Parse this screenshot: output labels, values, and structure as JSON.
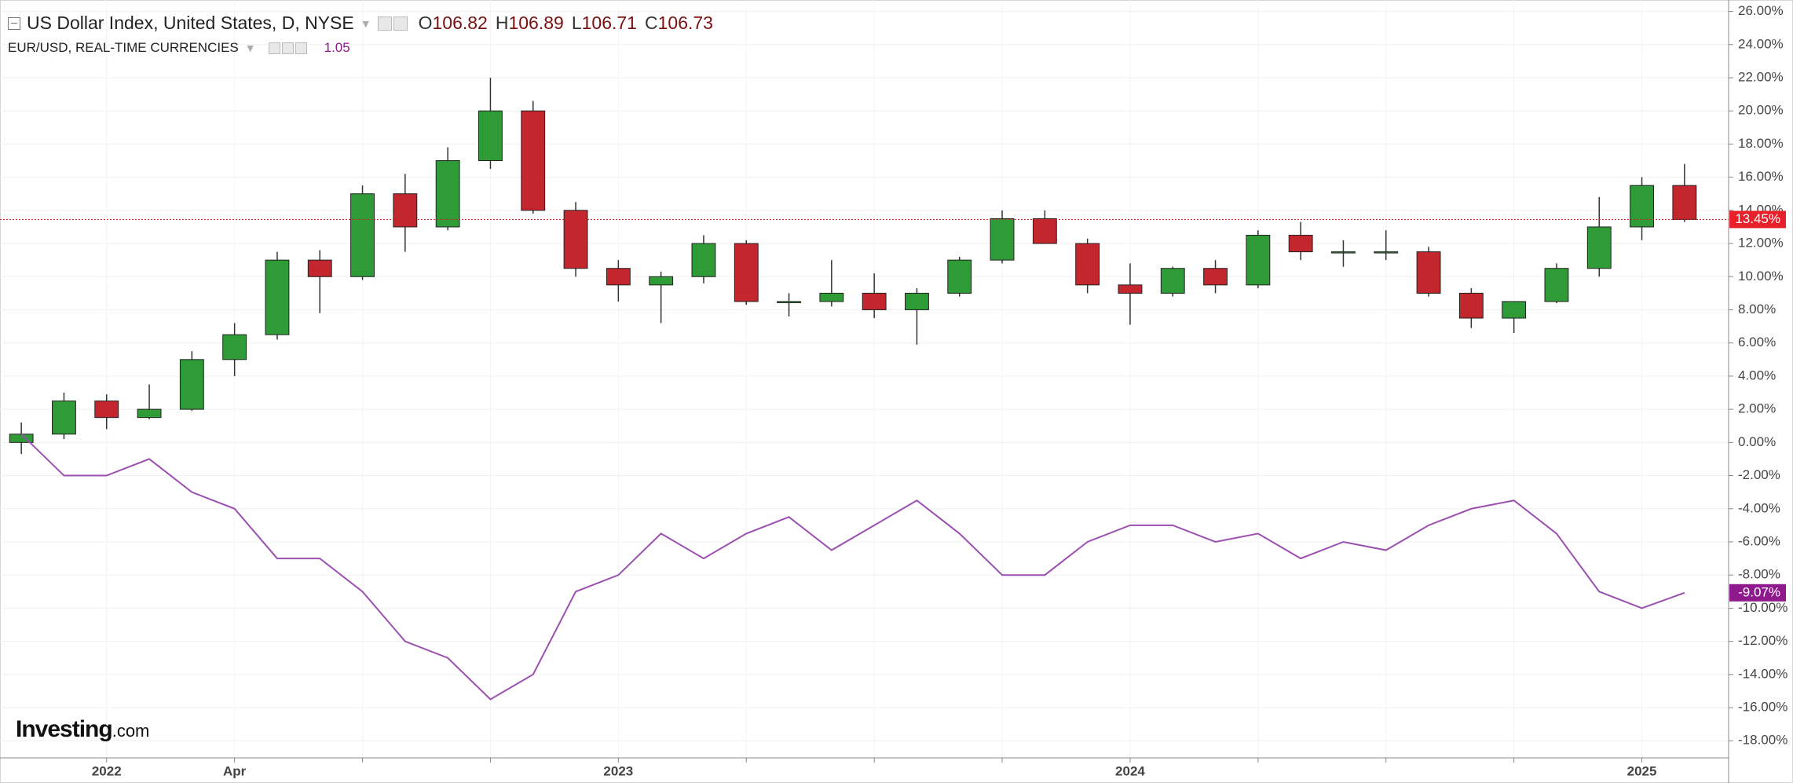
{
  "chart_data": {
    "type": "candlestick",
    "categories": [
      null,
      null,
      "2022",
      null,
      null,
      "Apr",
      null,
      null,
      null,
      null,
      null,
      null,
      null,
      null,
      "2023",
      null,
      null,
      null,
      null,
      null,
      null,
      null,
      null,
      null,
      null,
      null,
      "2024",
      null,
      null,
      null,
      null,
      null,
      null,
      null,
      null,
      null,
      null,
      null,
      "2025",
      null
    ],
    "series": [
      {
        "name": "US Dollar Index, United States, D, NYSE",
        "up_color": "#2f9b37",
        "down_color": "#c4262e",
        "open": [
          0,
          0.5,
          2.5,
          1.5,
          2,
          5,
          6.5,
          11,
          10,
          15,
          13,
          17,
          20,
          14,
          10.5,
          9.5,
          10,
          12,
          8.5,
          8.5,
          9,
          8,
          9,
          11,
          13.5,
          12,
          9.5,
          9,
          10.5,
          9.5,
          12.5,
          11.5,
          11.5,
          11.5,
          9,
          7.5,
          8.5,
          10.5,
          13,
          15.5
        ],
        "high": [
          1.2,
          3,
          2.9,
          3.5,
          5.5,
          7.2,
          11.5,
          11.6,
          15.5,
          16.2,
          17.8,
          22,
          20.6,
          14.5,
          11,
          10.3,
          12.5,
          12.2,
          9,
          11,
          10.2,
          9.3,
          11.2,
          14,
          14,
          12.3,
          10.8,
          10.6,
          11,
          12.8,
          13.3,
          12.2,
          12.8,
          11.8,
          9.3,
          8.5,
          10.8,
          14.8,
          16,
          16.8
        ],
        "low": [
          -0.7,
          0.2,
          0.8,
          1.4,
          1.9,
          4,
          6.2,
          7.8,
          9.8,
          11.5,
          12.8,
          16.5,
          13.8,
          10,
          8.5,
          7.2,
          9.6,
          8.3,
          7.6,
          8.2,
          7.5,
          5.9,
          8.8,
          10.8,
          12.2,
          9,
          7.1,
          8.8,
          9,
          9.3,
          11,
          10.6,
          11,
          8.8,
          6.9,
          6.6,
          8.4,
          10,
          12.2,
          13.3
        ],
        "close": [
          0.5,
          2.5,
          1.5,
          2,
          5,
          6.5,
          11,
          10,
          15,
          13,
          17,
          20,
          14,
          10.5,
          9.5,
          10,
          12,
          8.5,
          8.5,
          9,
          8,
          9,
          11,
          13.5,
          12,
          9.5,
          9,
          10.5,
          9.5,
          12.5,
          11.5,
          11.5,
          11.5,
          9,
          7.5,
          8.5,
          10.5,
          13,
          15.5,
          13.45
        ],
        "last_label": "13.45%",
        "ohlc": [
          {
            "letter": "O",
            "value": 106.82
          },
          {
            "letter": "H",
            "value": 106.89
          },
          {
            "letter": "L",
            "value": 106.71
          },
          {
            "letter": "C",
            "value": 106.73
          }
        ]
      },
      {
        "name": "EUR/USD, REAL-TIME CURRENCIES",
        "color": "#9b4fb0",
        "values": [
          0.5,
          -2,
          -2,
          -1,
          -3,
          -4,
          -7,
          -7,
          -9,
          -12,
          -13,
          -15.5,
          -14,
          -9,
          -8,
          -5.5,
          -7,
          -5.5,
          -4.5,
          -6.5,
          -5,
          -3.5,
          -5.5,
          -8,
          -8,
          -6,
          -5,
          -5,
          -6,
          -5.5,
          -7,
          -6,
          -6.5,
          -5,
          -4,
          -3.5,
          -5.5,
          -9,
          -10,
          -9.07
        ],
        "last_label": "-9.07%",
        "price": 1.05
      }
    ],
    "ylim": [
      -19.03,
      26.69
    ],
    "yticks": [
      {
        "value": 26,
        "label": "26.00%"
      },
      {
        "value": 24,
        "label": "24.00%"
      },
      {
        "value": 22,
        "label": "22.00%"
      },
      {
        "value": 20,
        "label": "20.00%"
      },
      {
        "value": 18,
        "label": "18.00%"
      },
      {
        "value": 16,
        "label": "16.00%"
      },
      {
        "value": 14,
        "label": "14.00%"
      },
      {
        "value": 12,
        "label": "12.00%"
      },
      {
        "value": 10,
        "label": "10.00%"
      },
      {
        "value": 8,
        "label": "8.00%"
      },
      {
        "value": 6,
        "label": "6.00%"
      },
      {
        "value": 4,
        "label": "4.00%"
      },
      {
        "value": 2,
        "label": "2.00%"
      },
      {
        "value": 0,
        "label": "0.00%"
      },
      {
        "value": -2,
        "label": "-2.00%"
      },
      {
        "value": -4,
        "label": "-4.00%"
      },
      {
        "value": -6,
        "label": "-6.00%"
      },
      {
        "value": -8,
        "label": "-8.00%"
      },
      {
        "value": -10,
        "label": "-10.00%"
      },
      {
        "value": -12,
        "label": "-12.00%"
      },
      {
        "value": -14,
        "label": "-14.00%"
      },
      {
        "value": -16,
        "label": "-16.00%"
      },
      {
        "value": -18,
        "label": "-18.00%"
      }
    ],
    "grid": true,
    "watermark": "Investing",
    "watermark_suffix": ".com"
  }
}
